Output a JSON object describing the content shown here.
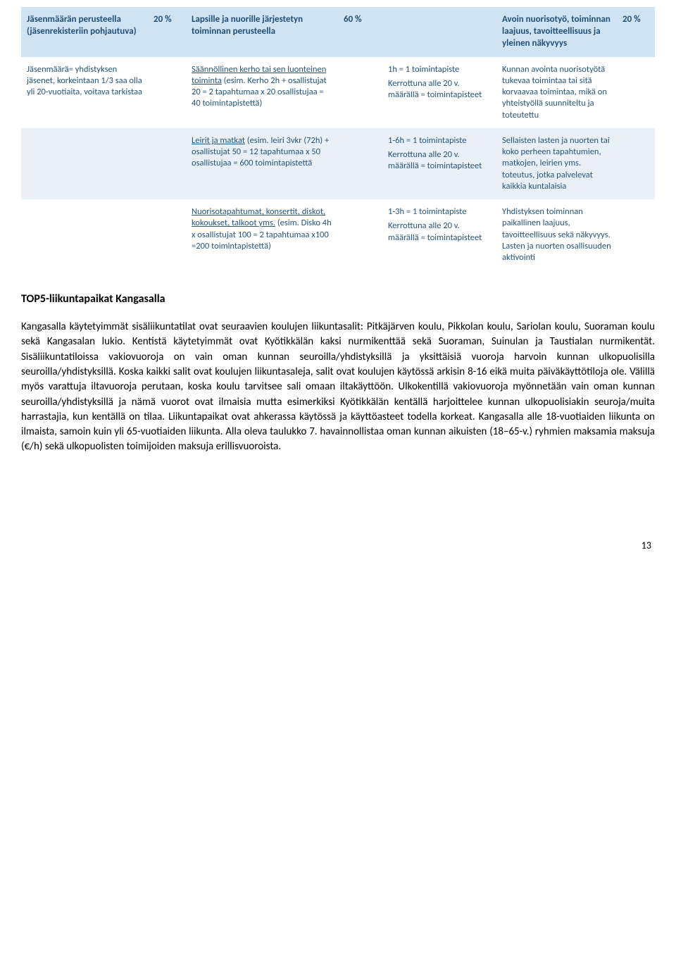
{
  "table": {
    "colors": {
      "header_bg": "#d0e3f2",
      "header_text": "#1f4e79",
      "white_bg": "#ffffff",
      "light_bg": "#e9f0f8",
      "cell_text": "#26547c"
    },
    "header": {
      "c1": "Jäsenmäärän perusteella (jäsenrekisteriin pohjautuva)",
      "c2": "20 %",
      "c3": "Lapsille ja nuorille järjestetyn toiminnan perusteella",
      "c4": "60 %",
      "c5": "",
      "c6": "Avoin nuorisotyö, toiminnan laajuus, tavoitteellisuus ja yleinen näkyvyys",
      "c7": "20 %"
    },
    "row1": {
      "c1": "Jäsenmäärä= yhdistyksen jäsenet, korkeintaan 1/3 saa olla yli 20-vuotiaita, voitava tarkistaa",
      "c3_u": "Säännöllinen kerho tai sen luonteinen toiminta",
      "c3_rest": " (esim. Kerho 2h + osallistujat 20 = 2 tapahtumaa x 20 osallistujaa = 40 toimintapistettä)",
      "c5a": "1h = 1 toimintapiste",
      "c5b": "Kerrottuna alle 20 v. määrällä = toimintapisteet",
      "c6": "Kunnan avointa nuorisotyötä tukevaa toimintaa tai sitä korvaavaa toimintaa, mikä on yhteistyöllä suunniteltu ja toteutettu"
    },
    "row2": {
      "c3_u": "Leirit ja matkat",
      "c3_rest": " (esim. leiri 3vkr (72h) + osallistujat 50 = 12 tapahtumaa x 50 osallistujaa = 600 toimintapistettä",
      "c5a": "1-6h = 1 toimintapiste",
      "c5b": "Kerrottuna alle 20 v. määrällä = toimintapisteet",
      "c6": "Sellaisten lasten ja nuorten tai koko perheen tapahtumien, matkojen, leirien yms. toteutus, jotka palvelevat kaikkia kuntalaisia"
    },
    "row3": {
      "c3_u": "Nuorisotapahtumat, konsertit, diskot, kokoukset, talkoot yms.",
      "c3_rest": " (esim. Disko 4h x osallistujat 100 = 2 tapahtumaa x100 =200 toimintapistettä)",
      "c5a": "1-3h = 1 toimintapiste",
      "c5b": "Kerrottuna alle 20 v. määrällä = toimintapisteet",
      "c6": "Yhdistyksen toiminnan paikallinen laajuus, tavoitteellisuus sekä näkyvyys. Lasten ja nuorten osallisuuden aktivointi"
    }
  },
  "section_title": "TOP5-liikuntapaikat Kangasalla",
  "paragraph": "Kangasalla käytetyimmät sisäliikuntatilat ovat seuraavien koulujen liikuntasalit: Pitkäjärven koulu, Pikkolan koulu, Sariolan koulu, Suoraman koulu sekä Kangasalan lukio. Kentistä käytetyimmät ovat Kyötikkälän kaksi nurmikenttää sekä Suoraman, Suinulan ja Taustialan nurmikentät. Sisäliikuntatiloissa vakiovuoroja on vain oman kunnan seuroilla/yhdistyksillä ja yksittäisiä vuoroja harvoin kunnan ulkopuolisilla seuroilla/yhdistyksillä. Koska kaikki salit ovat koulujen liikuntasaleja, salit ovat koulujen käytössä arkisin 8-16 eikä muita päiväkäyttötiloja ole. Välillä myös varattuja iltavuoroja perutaan, koska koulu tarvitsee sali omaan iltakäyttöön. Ulkokentillä vakiovuoroja myönnetään vain oman kunnan seuroilla/yhdistyksillä ja nämä vuorot ovat ilmaisia mutta esimerkiksi Kyötikkälän kentällä harjoittelee kunnan ulkopuolisiakin seuroja/muita harrastajia, kun kentällä on tilaa. Liikuntapaikat ovat ahkerassa käytössä ja käyttöasteet todella korkeat. Kangasalla alle 18-vuotiaiden liikunta on ilmaista, samoin kuin yli 65-vuotiaiden liikunta. Alla oleva taulukko 7. havainnollistaa oman kunnan aikuisten (18–65-v.) ryhmien maksamia maksuja (€/h) sekä ulkopuolisten toimijoiden maksuja erillisvuoroista.",
  "page_number": "13"
}
